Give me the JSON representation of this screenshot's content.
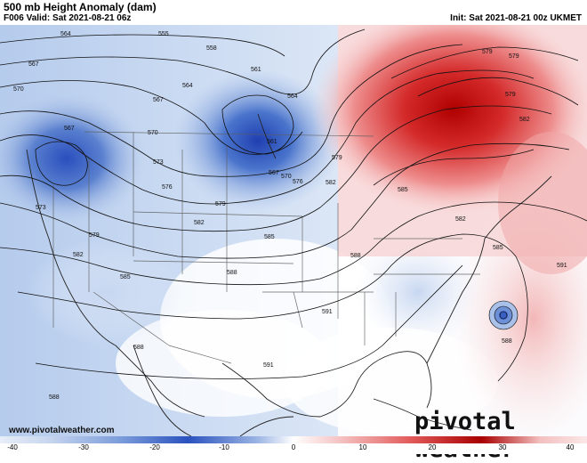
{
  "header": {
    "title": "500 mb Height Anomaly (dam)",
    "valid": "F006 Valid: Sat 2021-08-21 06z",
    "init": "Init: Sat 2021-08-21 00z UKMET"
  },
  "watermark": "www.pivotalweather.com",
  "brand": "pivotal weather",
  "contour_labels": [
    "564",
    "567",
    "570",
    "573",
    "576",
    "579",
    "582",
    "585",
    "588",
    "591",
    "561",
    "555",
    "558"
  ],
  "colorbar": {
    "ticks": [
      "-40",
      "-30",
      "-20",
      "-10",
      "0",
      "10",
      "20",
      "30",
      "40"
    ],
    "colors": {
      "neg_max": "#2a52be",
      "neg_mid": "#8fb0df",
      "neutral": "#ffffff",
      "pos_mid": "#f0a0a0",
      "pos_max": "#a80000"
    }
  }
}
